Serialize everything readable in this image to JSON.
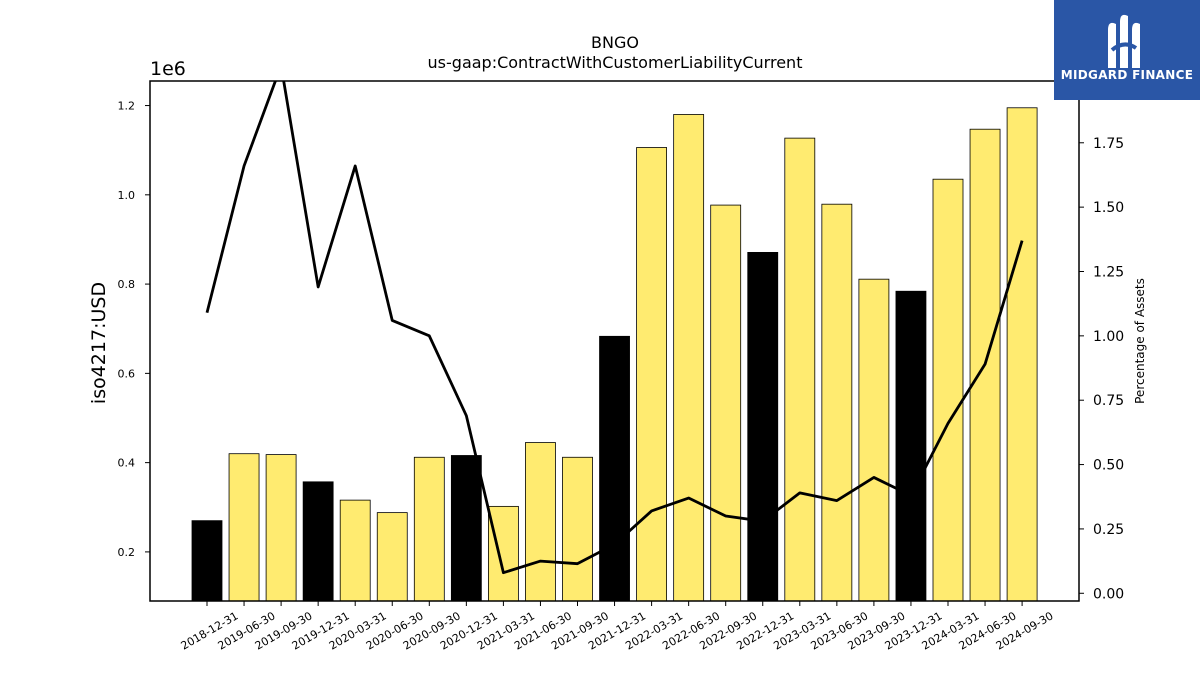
{
  "chart_data": {
    "type": "bar+line",
    "title": "BNGO",
    "subtitle": "us-gaap:ContractWithCustomerLiabilityCurrent",
    "ylabel": "iso4217:USD",
    "y_offset_label": "1e6",
    "y2label": "Percentage of Assets",
    "categories": [
      "2018-12-31",
      "2019-06-30",
      "2019-09-30",
      "2019-12-31",
      "2020-03-31",
      "2020-06-30",
      "2020-09-30",
      "2020-12-31",
      "2021-03-31",
      "2021-06-30",
      "2021-09-30",
      "2021-12-31",
      "2022-03-31",
      "2022-06-30",
      "2022-09-30",
      "2022-12-31",
      "2023-03-31",
      "2023-06-30",
      "2023-09-30",
      "2023-12-31",
      "2024-03-31",
      "2024-06-30",
      "2024-09-30"
    ],
    "bars": {
      "values": [
        270000,
        420000,
        418000,
        357000,
        316000,
        288000,
        412000,
        416000,
        302000,
        445000,
        412000,
        683000,
        1106000,
        1180000,
        977000,
        871000,
        1127000,
        979000,
        811000,
        784000,
        1035000,
        1147000,
        1195000
      ],
      "fiscal_year_end": [
        true,
        false,
        false,
        true,
        false,
        false,
        false,
        true,
        false,
        false,
        false,
        true,
        false,
        false,
        false,
        true,
        false,
        false,
        false,
        true,
        false,
        false,
        false
      ],
      "colors": {
        "quarter": "#ffeb70",
        "year_end": "#000000"
      }
    },
    "line": {
      "axis": "right",
      "values": [
        1.09,
        1.66,
        2.05,
        1.19,
        1.66,
        1.06,
        1.0,
        0.69,
        0.08,
        0.125,
        0.115,
        0.19,
        0.32,
        0.37,
        0.3,
        0.28,
        0.39,
        0.36,
        0.45,
        0.38,
        0.66,
        0.89,
        1.37
      ],
      "color": "#000000"
    },
    "ylim": [
      90000,
      1255000
    ],
    "yticks": [
      0.2,
      0.4,
      0.6,
      0.8,
      1.0,
      1.2
    ],
    "y2lim": [
      -0.03,
      1.99
    ],
    "y2ticks": [
      0.0,
      0.25,
      0.5,
      0.75,
      1.0,
      1.25,
      1.5,
      1.75
    ]
  },
  "logo": {
    "text": "MIDGARD FINANCE",
    "bg": "#2a56a6"
  }
}
